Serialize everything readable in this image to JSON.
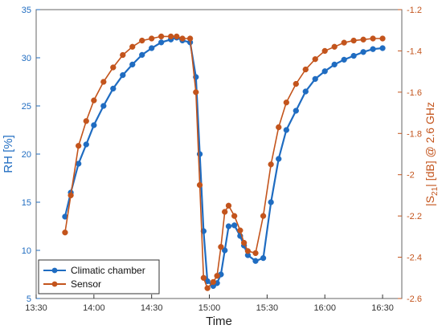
{
  "chart_data": {
    "type": "line",
    "xlabel": "Time",
    "ylabel_left": "RH [%]",
    "ylabel_right": "|S21| [dB] @ 2.6 GHz",
    "x_range_minutes": [
      810,
      1000
    ],
    "x_ticks": [
      "13:30",
      "14:00",
      "14:30",
      "15:00",
      "15:30",
      "16:00",
      "16:30"
    ],
    "ylim_left": [
      5,
      35
    ],
    "y_ticks_left": [
      "5",
      "10",
      "15",
      "20",
      "25",
      "30",
      "35"
    ],
    "ylim_right": [
      -2.6,
      -1.2
    ],
    "y_ticks_right": [
      "-2.6",
      "-2.4",
      "-2.2",
      "-2",
      "-1.8",
      "-1.6",
      "-1.4",
      "-1.2"
    ],
    "legend_position": "bottom-left",
    "series": [
      {
        "name": "Climatic chamber",
        "axis": "left",
        "color": "#1f6cc1",
        "x_minutes": [
          825,
          828,
          832,
          836,
          840,
          845,
          850,
          855,
          860,
          865,
          870,
          875,
          880,
          883,
          886,
          890,
          893,
          895,
          897,
          899,
          902,
          904,
          906,
          908,
          910,
          913,
          916,
          918,
          920,
          924,
          928,
          932,
          936,
          940,
          945,
          950,
          955,
          960,
          965,
          970,
          975,
          980,
          985,
          990
        ],
        "values": [
          13.5,
          16,
          19,
          21,
          23,
          25,
          26.8,
          28.2,
          29.3,
          30.3,
          31,
          31.6,
          31.9,
          32.1,
          31.8,
          31.6,
          28,
          20,
          12,
          6.8,
          6.3,
          6.6,
          7.5,
          10,
          12.5,
          12.6,
          11.5,
          10.5,
          9.5,
          8.9,
          9.2,
          15,
          19.5,
          22.5,
          24.5,
          26.5,
          27.8,
          28.6,
          29.3,
          29.8,
          30.2,
          30.6,
          30.9,
          31
        ]
      },
      {
        "name": "Sensor",
        "axis": "right",
        "color": "#c3541c",
        "x_minutes": [
          825,
          828,
          832,
          836,
          840,
          845,
          850,
          855,
          860,
          865,
          870,
          875,
          880,
          883,
          886,
          890,
          893,
          895,
          897,
          899,
          902,
          904,
          906,
          908,
          910,
          913,
          916,
          918,
          920,
          924,
          928,
          932,
          936,
          940,
          945,
          950,
          955,
          960,
          965,
          970,
          975,
          980,
          985,
          990
        ],
        "values": [
          -2.28,
          -2.1,
          -1.86,
          -1.74,
          -1.64,
          -1.55,
          -1.48,
          -1.42,
          -1.38,
          -1.35,
          -1.34,
          -1.33,
          -1.33,
          -1.33,
          -1.34,
          -1.34,
          -1.6,
          -2.05,
          -2.5,
          -2.55,
          -2.52,
          -2.49,
          -2.35,
          -2.18,
          -2.15,
          -2.2,
          -2.27,
          -2.33,
          -2.37,
          -2.38,
          -2.2,
          -1.95,
          -1.77,
          -1.65,
          -1.56,
          -1.49,
          -1.44,
          -1.4,
          -1.38,
          -1.36,
          -1.35,
          -1.345,
          -1.34,
          -1.34
        ]
      }
    ]
  }
}
